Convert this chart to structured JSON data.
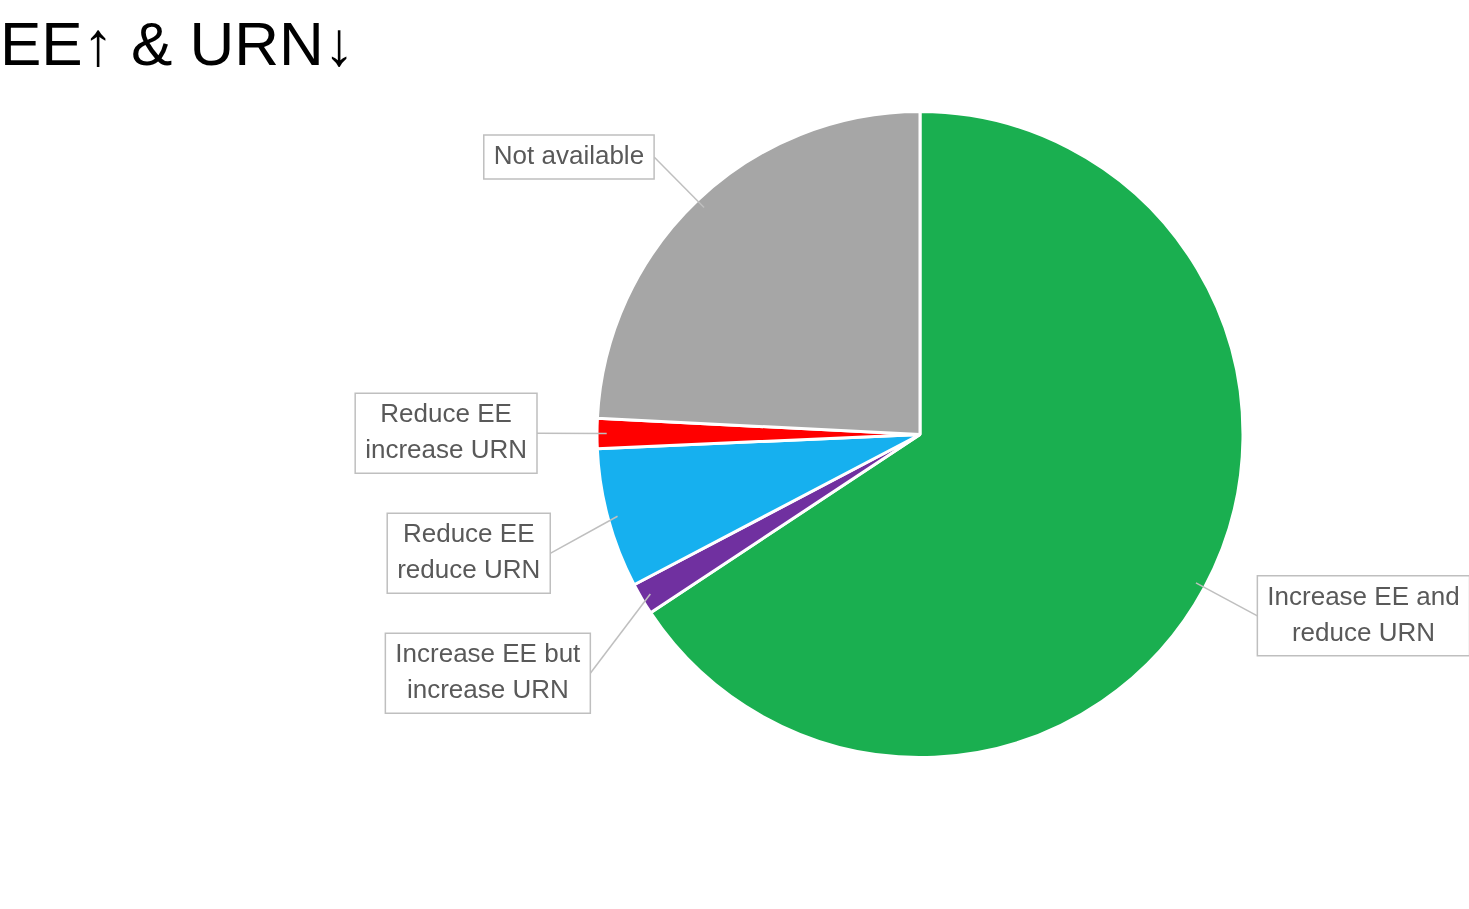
{
  "chart_data": {
    "type": "pie",
    "title": "EE↑ & URN↓",
    "categories": [
      "Increase EE and reduce URN",
      "Increase EE but increase URN",
      "Reduce EE reduce URN",
      "Reduce EE increase URN",
      "Not available"
    ],
    "values": [
      65.7,
      1.6,
      7.0,
      1.5,
      24.2
    ],
    "colors": [
      "#1aaf50",
      "#7030a0",
      "#16b0ef",
      "#ff0000",
      "#a6a6a6"
    ],
    "legend": false
  }
}
